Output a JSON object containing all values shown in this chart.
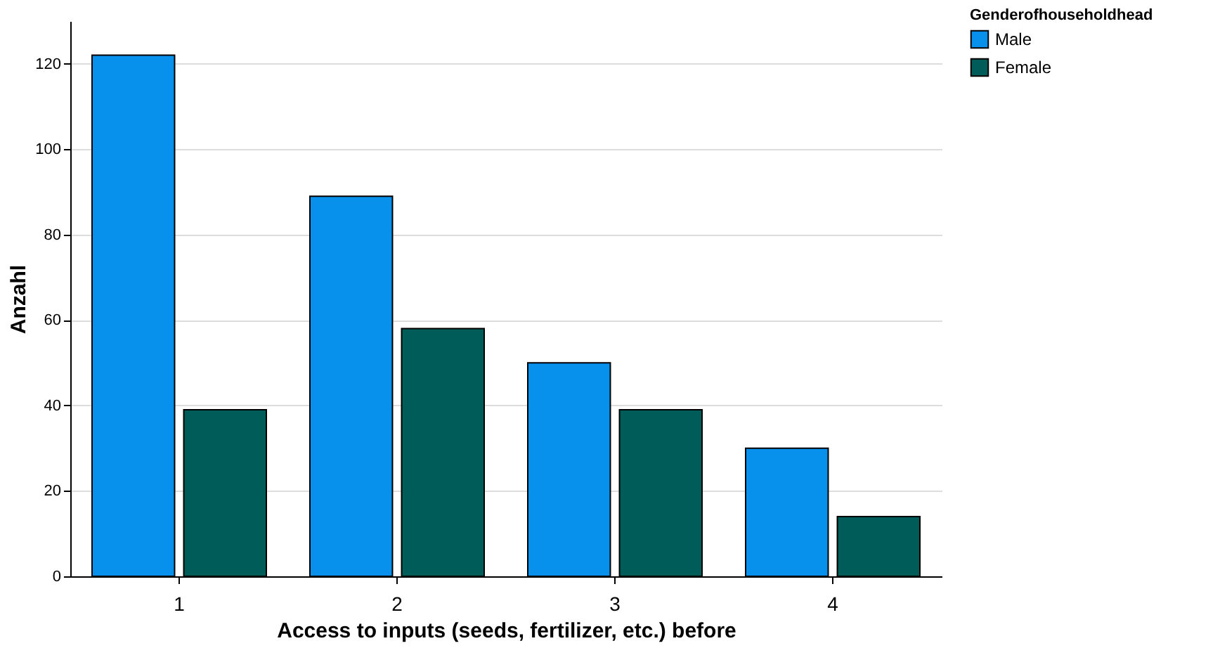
{
  "chart_data": {
    "type": "bar",
    "xlabel": "Access to inputs (seeds, fertilizer, etc.) before",
    "ylabel": "Anzahl",
    "legend_title": "Genderofhouseholdhead",
    "categories": [
      "1",
      "2",
      "3",
      "4"
    ],
    "series": [
      {
        "name": "Male",
        "color": "#0891ec",
        "values": [
          122,
          89,
          50,
          30
        ]
      },
      {
        "name": "Female",
        "color": "#005c58",
        "values": [
          39,
          58,
          39,
          14
        ]
      }
    ],
    "ylim": [
      0,
      130
    ],
    "yticks": [
      0,
      20,
      40,
      60,
      80,
      100,
      120
    ],
    "grid": "y",
    "legend": "top right"
  }
}
